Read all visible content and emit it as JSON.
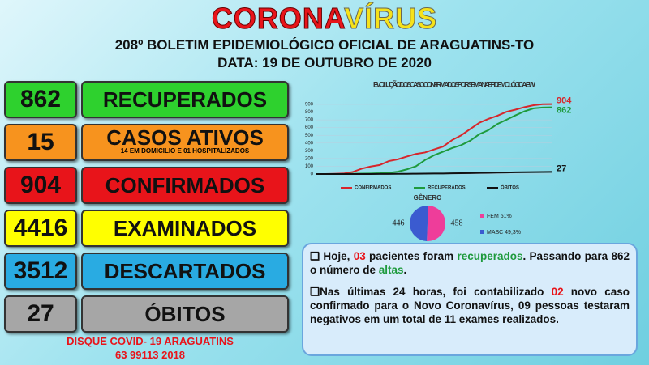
{
  "header": {
    "title_a": "CORONA",
    "title_b": "VÍRUS",
    "line1": "208º BOLETIM EPIDEMIOLÓGICO OFICIAL DE ARAGUATINS-TO",
    "line2": "DATA: 19  DE OUTUBRO DE 2020"
  },
  "stats": [
    {
      "number": "862",
      "label": "RECUPERADOS",
      "color": "#2ed12e"
    },
    {
      "number": "15",
      "label": "CASOS ATIVOS",
      "note": "14 EM DOMICILIO E 01 HOSPITALIZADOS",
      "color": "#f7931e"
    },
    {
      "number": "904",
      "label": "CONFIRMADOS",
      "color": "#e8141a"
    },
    {
      "number": "4416",
      "label": "EXAMINADOS",
      "color": "#ffff00"
    },
    {
      "number": "3512",
      "label": "DESCARTADOS",
      "color": "#29abe2"
    },
    {
      "number": "27",
      "label": "ÓBITOS",
      "color": "#a6a6a6"
    }
  ],
  "chart_data": [
    {
      "type": "line",
      "title": "EVOLUÇÃO DOS CASOCONFIRMADOS POR SEMANA EPIDEMIOLÓGICA-EW",
      "categories": [
        null,
        null,
        null,
        null,
        null,
        null,
        null,
        null,
        null,
        null,
        null,
        null,
        null,
        null,
        null,
        null,
        null,
        null,
        null,
        null,
        null,
        null,
        null,
        null,
        null,
        null,
        null
      ],
      "series": [
        {
          "name": "CONFIRMADOS",
          "color": "#d7262b",
          "values": [
            0,
            0,
            2,
            6,
            26,
            69,
            97,
            116,
            167,
            190,
            226,
            259,
            278,
            317,
            355,
            439,
            500,
            582,
            662,
            712,
            753,
            804,
            832,
            865,
            889,
            902,
            904
          ]
        },
        {
          "name": "RECUPERADOS",
          "color": "#1e9a3c",
          "values": [
            0,
            0,
            0,
            0,
            2,
            5,
            7,
            10,
            16,
            30,
            60,
            100,
            180,
            242,
            288,
            335,
            374,
            431,
            514,
            566,
            646,
            701,
            758,
            811,
            849,
            859,
            862
          ]
        },
        {
          "name": "ÓBITOS",
          "color": "#111111",
          "values": [
            0,
            0,
            0,
            0,
            0,
            0,
            0,
            1,
            1,
            2,
            3,
            4,
            5,
            6,
            7,
            9,
            10,
            12,
            14,
            16,
            18,
            20,
            22,
            24,
            25,
            26,
            27
          ]
        }
      ],
      "ylim": [
        0,
        900
      ],
      "yticks": [
        0,
        100,
        200,
        300,
        400,
        500,
        600,
        700,
        800,
        900
      ],
      "grid": true
    },
    {
      "type": "pie",
      "title": "GÊNERO",
      "categories": [
        "FEM  51%",
        "MASC 49,3%"
      ],
      "values": [
        458,
        446
      ],
      "colors": [
        "#ee3d9a",
        "#3b5bd0"
      ]
    }
  ],
  "info": {
    "p1": [
      "Hoje, ",
      "03",
      " pacientes foram ",
      "recuperados",
      ". Passando para ",
      "862",
      " o número de ",
      "altas",
      "."
    ],
    "p2": [
      "Nas últimas 24 horas, foi contabilizado ",
      "02",
      " novo caso confirmado para o Novo Coronavírus, 09 pessoas testaram negativos em um total de 11 exames realizados."
    ]
  },
  "footer": {
    "line1": "DISQUE COVID- 19 ARAGUATINS",
    "line2": "63 99113 2018"
  }
}
